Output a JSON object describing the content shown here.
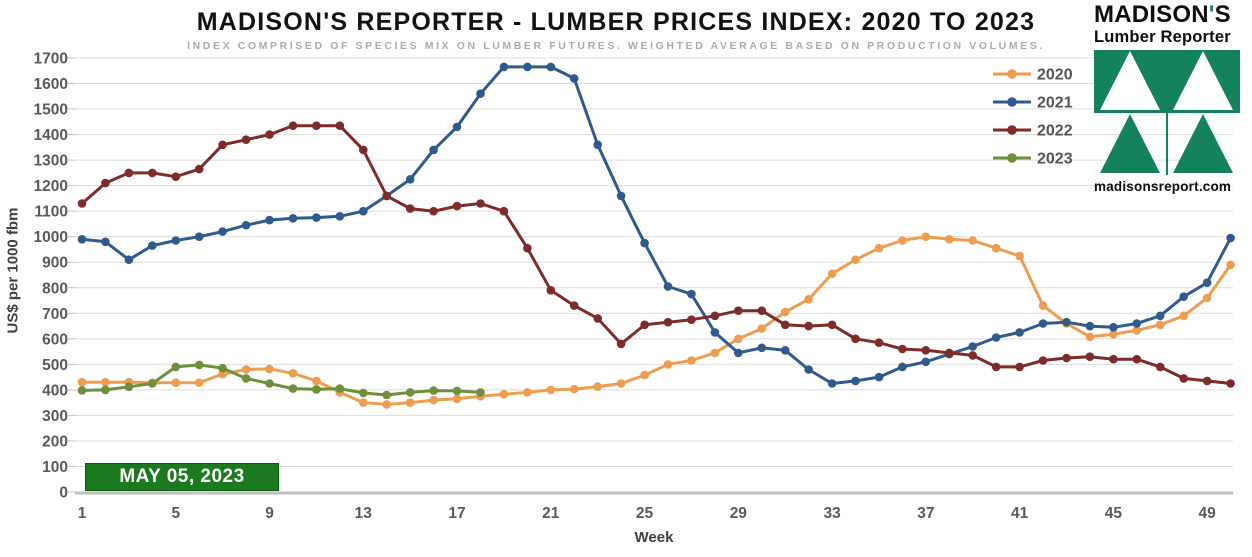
{
  "header": {
    "title": "MADISON'S REPORTER - LUMBER PRICES INDEX: 2020 TO 2023",
    "subtitle": "INDEX COMPRISED OF SPECIES MIX ON LUMBER FUTURES. WEIGHTED AVERAGE BASED ON PRODUCTION VOLUMES."
  },
  "branding": {
    "name_pre": "MADISON",
    "apostrophe": "'",
    "name_post": "S",
    "tagline": "Lumber Reporter",
    "website": "madisonsreport.com",
    "logo_green": "#14825a"
  },
  "chart_data": {
    "type": "line",
    "title": "MADISON'S REPORTER - LUMBER PRICES INDEX: 2020 TO 2023",
    "xlabel": "Week",
    "ylabel": "US$ per 1000 fbm",
    "ylim": [
      0,
      1700
    ],
    "y_step": 100,
    "x_ticks": [
      1,
      5,
      9,
      13,
      17,
      21,
      25,
      29,
      33,
      37,
      41,
      45,
      49
    ],
    "x_max": 50,
    "grid": true,
    "legend_position": "top-right",
    "colors": {
      "grid": "#dcdcdc",
      "axis": "#bfbfbf",
      "tick_text": "#595959",
      "legend_text": "#555555"
    },
    "annotation": {
      "label": "MAY 05, 2023",
      "bg": "#1b7a1f",
      "text_color": "#ffffff"
    },
    "series": [
      {
        "name": "2020",
        "color": "#ed9d50",
        "start_week": 1,
        "values": [
          430,
          430,
          430,
          428,
          428,
          428,
          462,
          480,
          482,
          465,
          435,
          390,
          350,
          343,
          350,
          360,
          365,
          375,
          383,
          390,
          400,
          403,
          413,
          425,
          458,
          500,
          515,
          545,
          600,
          640,
          705,
          755,
          855,
          910,
          955,
          985,
          1000,
          990,
          985,
          955,
          925,
          730,
          660,
          608,
          618,
          633,
          655,
          690,
          760,
          890
        ]
      },
      {
        "name": "2021",
        "color": "#2f5b8c",
        "start_week": 1,
        "values": [
          990,
          980,
          910,
          965,
          985,
          1000,
          1020,
          1045,
          1065,
          1072,
          1075,
          1080,
          1100,
          1160,
          1225,
          1340,
          1430,
          1560,
          1665,
          1665,
          1665,
          1620,
          1360,
          1160,
          975,
          805,
          775,
          625,
          545,
          565,
          555,
          480,
          425,
          435,
          450,
          490,
          510,
          540,
          570,
          605,
          625,
          660,
          665,
          650,
          645,
          660,
          690,
          765,
          820,
          995
        ]
      },
      {
        "name": "2022",
        "color": "#7d2b2b",
        "start_week": 1,
        "values": [
          1130,
          1210,
          1250,
          1250,
          1235,
          1265,
          1360,
          1380,
          1400,
          1435,
          1435,
          1435,
          1340,
          1160,
          1110,
          1100,
          1120,
          1130,
          1100,
          955,
          790,
          730,
          680,
          580,
          655,
          665,
          675,
          690,
          710,
          710,
          655,
          650,
          655,
          600,
          585,
          560,
          555,
          545,
          535,
          490,
          490,
          515,
          525,
          530,
          520,
          520,
          490,
          445,
          435,
          425
        ]
      },
      {
        "name": "2023",
        "color": "#6e8f3c",
        "start_week": 1,
        "values": [
          398,
          400,
          412,
          425,
          490,
          498,
          485,
          445,
          425,
          405,
          402,
          405,
          388,
          380,
          390,
          397,
          396,
          390
        ]
      }
    ]
  }
}
